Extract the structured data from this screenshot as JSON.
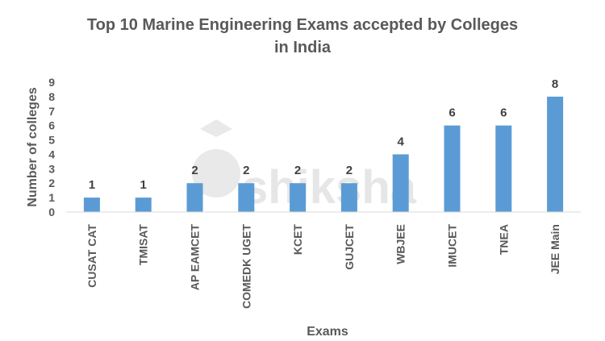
{
  "chart_data": {
    "type": "bar",
    "title_line1": "Top 10 Marine Engineering Exams accepted by Colleges",
    "title_line2": "in India",
    "xlabel": "Exams",
    "ylabel": "Number of colleges",
    "categories": [
      "CUSAT CAT",
      "TMISAT",
      "AP EAMCET",
      "COMEDK UGET",
      "KCET",
      "GUJCET",
      "WBJEE",
      "IMUCET",
      "TNEA",
      "JEE Main"
    ],
    "values": [
      1,
      1,
      2,
      2,
      2,
      2,
      4,
      6,
      6,
      8
    ],
    "ylim": [
      0,
      9
    ],
    "yticks": [
      "0",
      "1",
      "2",
      "3",
      "4",
      "5",
      "6",
      "7",
      "8",
      "9"
    ],
    "grid": false,
    "bar_color": "#5B9BD5",
    "data_labels": true
  },
  "watermark": {
    "text": "shiksha",
    "color": "#e6e6e6"
  }
}
